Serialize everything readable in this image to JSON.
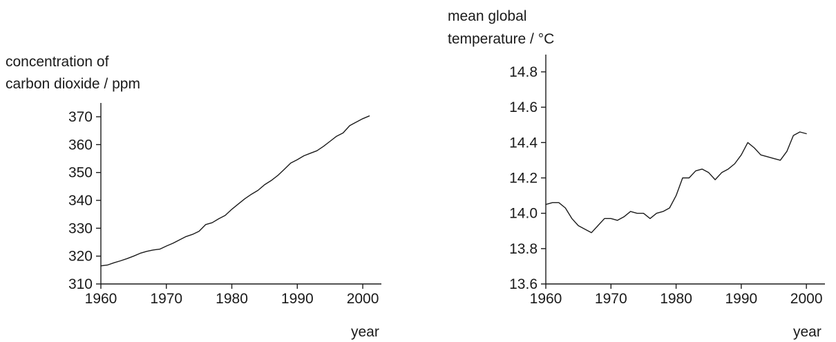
{
  "chart_data": [
    {
      "type": "line",
      "ylabel_lines": [
        "concentration of",
        "carbon dioxide / ppm"
      ],
      "xlabel": "year",
      "xlim": [
        1960,
        2002
      ],
      "ylim": [
        310,
        370
      ],
      "x_ticks": [
        1960,
        1970,
        1980,
        1990,
        2000
      ],
      "y_ticks": [
        310,
        320,
        330,
        340,
        350,
        360,
        370
      ],
      "grid": false,
      "series": [
        {
          "x": [
            1960,
            1961,
            1962,
            1963,
            1964,
            1965,
            1966,
            1967,
            1968,
            1969,
            1970,
            1971,
            1972,
            1973,
            1974,
            1975,
            1976,
            1977,
            1978,
            1979,
            1980,
            1981,
            1982,
            1983,
            1984,
            1985,
            1986,
            1987,
            1988,
            1989,
            1990,
            1991,
            1992,
            1993,
            1994,
            1995,
            1996,
            1997,
            1998,
            1999,
            2000,
            2001
          ],
          "values": [
            316.5,
            316.8,
            317.6,
            318.3,
            319.1,
            320.0,
            321.0,
            321.7,
            322.2,
            322.5,
            323.6,
            324.6,
            325.8,
            327.0,
            327.8,
            328.9,
            331.3,
            332.0,
            333.4,
            334.6,
            336.8,
            338.7,
            340.6,
            342.2,
            343.6,
            345.6,
            347.1,
            348.9,
            351.1,
            353.4,
            354.6,
            356.0,
            356.9,
            357.8,
            359.4,
            361.2,
            363.0,
            364.2,
            366.8,
            368.1,
            369.3,
            370.3
          ]
        }
      ]
    },
    {
      "type": "line",
      "ylabel_lines": [
        "mean global",
        "temperature / °C"
      ],
      "xlabel": "year",
      "xlim": [
        1960,
        2002
      ],
      "ylim": [
        13.6,
        14.8
      ],
      "x_ticks": [
        1960,
        1970,
        1980,
        1990,
        2000
      ],
      "y_ticks": [
        13.6,
        13.8,
        14.0,
        14.2,
        14.4,
        14.6,
        14.8
      ],
      "y_tick_labels": [
        "13.6",
        "13.8",
        "14.0",
        "14.2",
        "14.4",
        "14.6",
        "14.8"
      ],
      "grid": false,
      "series": [
        {
          "x": [
            1960,
            1961,
            1962,
            1963,
            1964,
            1965,
            1966,
            1967,
            1968,
            1969,
            1970,
            1971,
            1972,
            1973,
            1974,
            1975,
            1976,
            1977,
            1978,
            1979,
            1980,
            1981,
            1982,
            1983,
            1984,
            1985,
            1986,
            1987,
            1988,
            1989,
            1990,
            1991,
            1992,
            1993,
            1994,
            1995,
            1996,
            1997,
            1998,
            1999,
            2000
          ],
          "values": [
            14.05,
            14.06,
            14.06,
            14.03,
            13.97,
            13.93,
            13.91,
            13.89,
            13.93,
            13.97,
            13.97,
            13.96,
            13.98,
            14.01,
            14.0,
            14.0,
            13.97,
            14.0,
            14.01,
            14.03,
            14.1,
            14.2,
            14.2,
            14.24,
            14.25,
            14.23,
            14.19,
            14.23,
            14.25,
            14.28,
            14.33,
            14.4,
            14.37,
            14.33,
            14.32,
            14.31,
            14.3,
            14.35,
            14.44,
            14.46,
            14.45
          ]
        }
      ]
    }
  ]
}
